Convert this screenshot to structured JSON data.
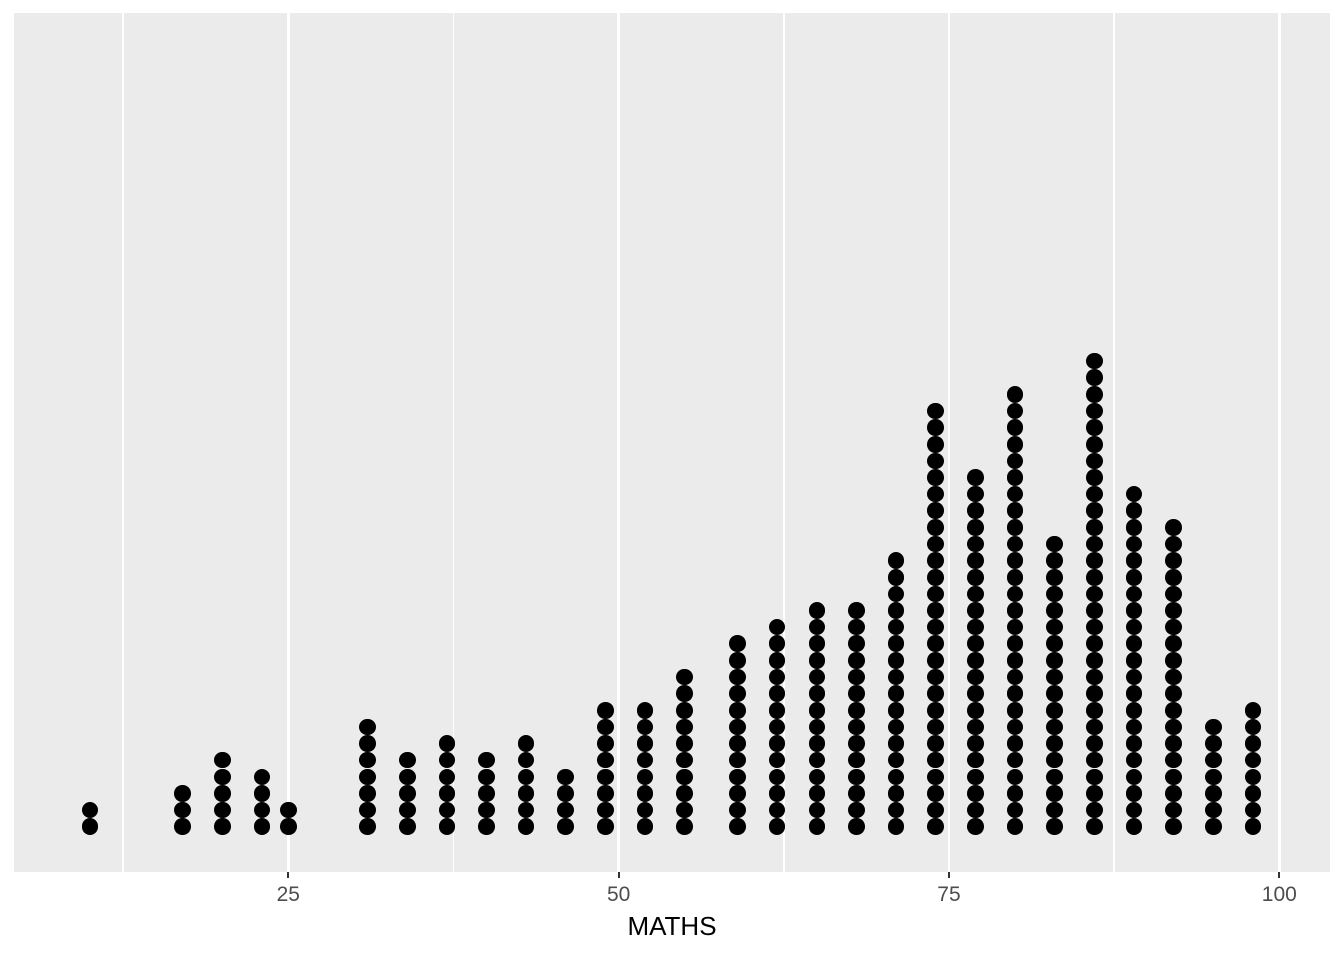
{
  "chart_data": {
    "type": "dotplot",
    "title": "",
    "xlabel": "MATHS",
    "ylabel": "",
    "x_ticks": [
      25,
      50,
      75,
      100
    ],
    "x_minor_ticks": [
      12.5,
      37.5,
      62.5,
      87.5
    ],
    "xlim": [
      4.2,
      103.8
    ],
    "grid": "vertical-only",
    "legend": "none",
    "dot_color": "#000000",
    "panel_bg": "#EBEBEB",
    "gridline_color": "#FFFFFF",
    "tick_label_color": "#4D4D4D",
    "axis_title_color": "#000000",
    "bins": [
      {
        "x": 10,
        "count": 2
      },
      {
        "x": 17,
        "count": 3
      },
      {
        "x": 20,
        "count": 5
      },
      {
        "x": 23,
        "count": 4
      },
      {
        "x": 25,
        "count": 2
      },
      {
        "x": 31,
        "count": 7
      },
      {
        "x": 34,
        "count": 5
      },
      {
        "x": 37,
        "count": 6
      },
      {
        "x": 40,
        "count": 5
      },
      {
        "x": 43,
        "count": 6
      },
      {
        "x": 46,
        "count": 4
      },
      {
        "x": 49,
        "count": 8
      },
      {
        "x": 52,
        "count": 8
      },
      {
        "x": 55,
        "count": 10
      },
      {
        "x": 59,
        "count": 12
      },
      {
        "x": 62,
        "count": 13
      },
      {
        "x": 65,
        "count": 14
      },
      {
        "x": 68,
        "count": 14
      },
      {
        "x": 71,
        "count": 17
      },
      {
        "x": 74,
        "count": 26
      },
      {
        "x": 77,
        "count": 22
      },
      {
        "x": 80,
        "count": 27
      },
      {
        "x": 83,
        "count": 18
      },
      {
        "x": 86,
        "count": 29
      },
      {
        "x": 89,
        "count": 21
      },
      {
        "x": 92,
        "count": 19
      },
      {
        "x": 95,
        "count": 7
      },
      {
        "x": 98,
        "count": 8
      }
    ]
  }
}
